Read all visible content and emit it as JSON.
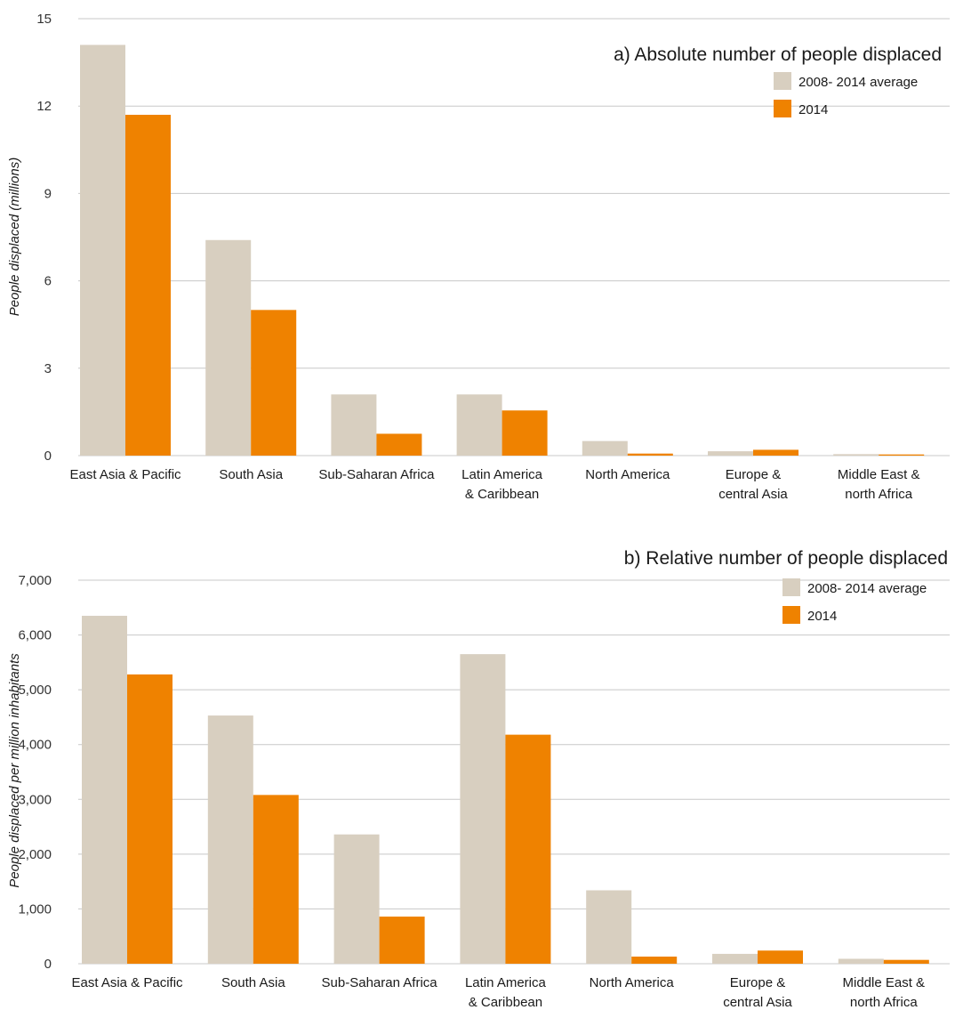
{
  "chart_data": [
    {
      "type": "bar",
      "title": "a) Absolute number of people displaced",
      "ylabel": "People displaced (millions)",
      "ylim": [
        0,
        15
      ],
      "yticks": [
        0,
        3,
        6,
        9,
        12,
        15
      ],
      "ytick_labels": [
        "0",
        "3",
        "6",
        "9",
        "12",
        "15"
      ],
      "grid": true,
      "legend_position": "top-right",
      "categories": [
        [
          "East Asia & Pacific"
        ],
        [
          "South Asia"
        ],
        [
          "Sub-Saharan Africa"
        ],
        [
          "Latin America",
          "& Caribbean"
        ],
        [
          "North America"
        ],
        [
          "Europe &",
          "central Asia"
        ],
        [
          "Middle East &",
          "north Africa"
        ]
      ],
      "series": [
        {
          "name": "2008- 2014 average",
          "color": "#d8cfc0",
          "values": [
            14.1,
            7.4,
            2.1,
            2.1,
            0.5,
            0.15,
            0.05
          ]
        },
        {
          "name": "2014",
          "color": "#ef8200",
          "values": [
            11.7,
            5.0,
            0.75,
            1.55,
            0.07,
            0.2,
            0.04
          ]
        }
      ]
    },
    {
      "type": "bar",
      "title": "b) Relative number of people displaced",
      "ylabel": "People displaced per million inhabitants",
      "ylim": [
        0,
        7000
      ],
      "yticks": [
        0,
        1000,
        2000,
        3000,
        4000,
        5000,
        6000,
        7000
      ],
      "ytick_labels": [
        "0",
        "1,000",
        "2,000",
        "3,000",
        "4,000",
        "5,000",
        "6,000",
        "7,000"
      ],
      "grid": true,
      "legend_position": "top-right",
      "categories": [
        [
          "East Asia & Pacific"
        ],
        [
          "South Asia"
        ],
        [
          "Sub-Saharan Africa"
        ],
        [
          "Latin America",
          "& Caribbean"
        ],
        [
          "North America"
        ],
        [
          "Europe &",
          "central Asia"
        ],
        [
          "Middle East &",
          "north Africa"
        ]
      ],
      "series": [
        {
          "name": "2008- 2014 average",
          "color": "#d8cfc0",
          "values": [
            6350,
            4530,
            2360,
            5650,
            1340,
            180,
            90
          ]
        },
        {
          "name": "2014",
          "color": "#ef8200",
          "values": [
            5280,
            3080,
            860,
            4180,
            130,
            240,
            70
          ]
        }
      ]
    }
  ]
}
